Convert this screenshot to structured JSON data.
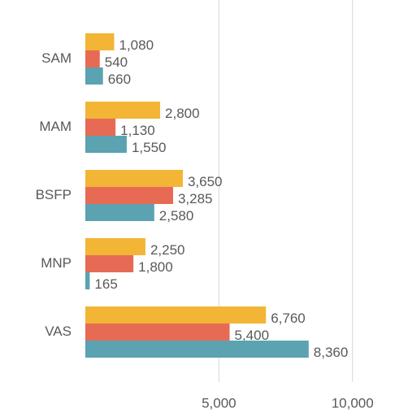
{
  "chart_data": {
    "type": "bar",
    "orientation": "horizontal",
    "categories": [
      "SAM",
      "MAM",
      "BSFP",
      "MNP",
      "VAS"
    ],
    "series": [
      {
        "color": "#f2b535",
        "values": [
          1080,
          2800,
          3650,
          2250,
          6760
        ],
        "value_labels": [
          "1,080",
          "2,800",
          "3,650",
          "2,250",
          "6,760"
        ]
      },
      {
        "color": "#e76a55",
        "values": [
          540,
          1130,
          3285,
          1800,
          5400
        ],
        "value_labels": [
          "540",
          "1,130",
          "3,285",
          "1,800",
          "5,400"
        ]
      },
      {
        "color": "#5ba3b1",
        "values": [
          660,
          1550,
          2580,
          165,
          8360
        ],
        "value_labels": [
          "660",
          "1,550",
          "2,580",
          "165",
          "8,360"
        ]
      }
    ],
    "xlim": [
      0,
      11500
    ],
    "xticks": [
      {
        "value": 5000,
        "label": "5,000"
      },
      {
        "value": 10000,
        "label": "10,000"
      }
    ],
    "grid": true
  }
}
